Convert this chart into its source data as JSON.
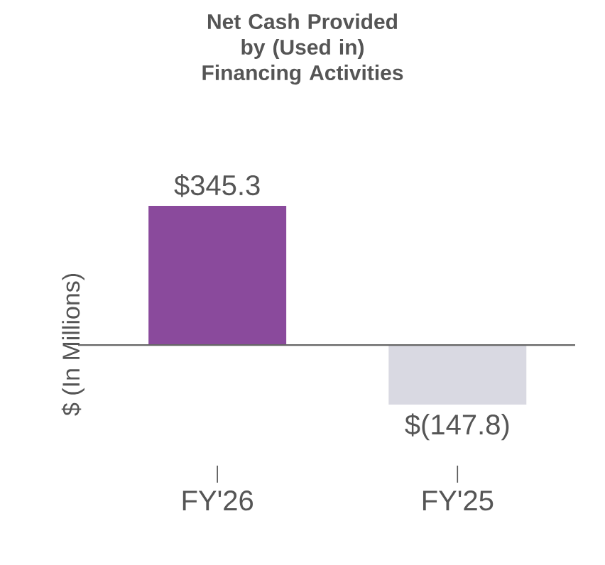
{
  "chart_data": {
    "type": "bar",
    "title": "Net Cash Provided by (Used in) Financing Activities",
    "ylabel": "$ (In Millions)",
    "categories": [
      "FY'26",
      "FY'25"
    ],
    "values": [
      345.3,
      -147.8
    ],
    "colors": [
      "#8a4a9c",
      "#d9d9e2"
    ],
    "value_labels": [
      "$345.3",
      "$(147.8)"
    ]
  }
}
